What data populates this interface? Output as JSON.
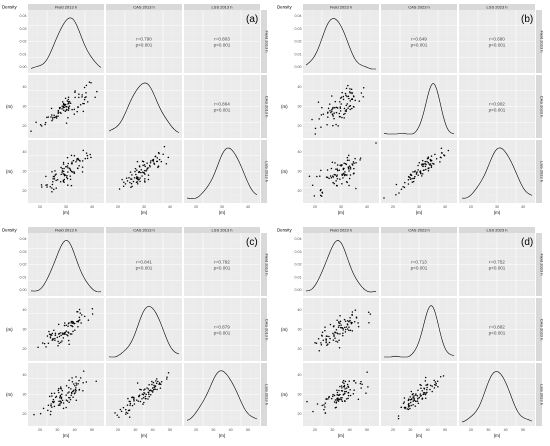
{
  "figure_labels": [
    "(a)",
    "(b)",
    "(c)",
    "(d)"
  ],
  "axis_texts": {
    "density": "Density",
    "unit": "(m)"
  },
  "chart_data": [
    {
      "type": "scatter",
      "label": "(a)",
      "variables": [
        "Field 2013 h",
        "CAS 2013 h",
        "LSS 2013 h"
      ],
      "correlations": [
        {
          "pair": [
            "Field",
            "CAS"
          ],
          "r": "r=0.790",
          "p": "p<0.001"
        },
        {
          "pair": [
            "Field",
            "LSS"
          ],
          "r": "r=0.803",
          "p": "p<0.001"
        },
        {
          "pair": [
            "CAS",
            "LSS"
          ],
          "r": "r=0.864",
          "p": "p<0.001"
        }
      ],
      "density_ticks": [
        "0.04",
        "0.03",
        "0.02",
        "0.01",
        "0.00"
      ],
      "x_ticks": [
        "20",
        "30",
        "40"
      ],
      "y_ticks": [
        "40",
        "30",
        "20"
      ]
    },
    {
      "type": "scatter",
      "label": "(b)",
      "variables": [
        "Field 2023 h",
        "CAS 2023 h",
        "LSS 2023 h"
      ],
      "correlations": [
        {
          "pair": [
            "Field",
            "CAS"
          ],
          "r": "r=0.649",
          "p": "p<0.001"
        },
        {
          "pair": [
            "Field",
            "LSS"
          ],
          "r": "r=0.680",
          "p": "p<0.001"
        },
        {
          "pair": [
            "CAS",
            "LSS"
          ],
          "r": "r=0.902",
          "p": "p<0.001"
        }
      ],
      "density_ticks": [
        "0.04",
        "0.03",
        "0.02",
        "0.01",
        "0.00"
      ],
      "x_ticks": [
        "20",
        "30",
        "40"
      ],
      "y_ticks": [
        "40",
        "30",
        "20"
      ]
    },
    {
      "type": "scatter",
      "label": "(c)",
      "variables": [
        "Field 2013 h",
        "CAS 2013 h",
        "LSS 2013 h"
      ],
      "correlations": [
        {
          "pair": [
            "Field",
            "CAS"
          ],
          "r": "r=0.841",
          "p": "p<0.001"
        },
        {
          "pair": [
            "Field",
            "LSS"
          ],
          "r": "r=0.782",
          "p": "p<0.001"
        },
        {
          "pair": [
            "CAS",
            "LSS"
          ],
          "r": "r=0.879",
          "p": "p<0.001"
        }
      ],
      "density_ticks": [
        "0.04",
        "0.03",
        "0.02",
        "0.01",
        "0.00"
      ],
      "x_ticks": [
        "20",
        "30",
        "40",
        "50"
      ],
      "y_ticks": [
        "40",
        "30",
        "20"
      ]
    },
    {
      "type": "scatter",
      "label": "(d)",
      "variables": [
        "Field 2023 h",
        "CAS 2023 h",
        "LSS 2023 h"
      ],
      "correlations": [
        {
          "pair": [
            "Field",
            "CAS"
          ],
          "r": "r=0.713",
          "p": "p<0.001"
        },
        {
          "pair": [
            "Field",
            "LSS"
          ],
          "r": "r=0.752",
          "p": "p<0.001"
        },
        {
          "pair": [
            "CAS",
            "LSS"
          ],
          "r": "r=0.882",
          "p": "p<0.001"
        }
      ],
      "density_ticks": [
        "0.04",
        "0.03",
        "0.02",
        "0.01",
        "0.00"
      ],
      "x_ticks": [
        "20",
        "30",
        "40",
        "50"
      ],
      "y_ticks": [
        "40",
        "30",
        "20"
      ]
    }
  ]
}
